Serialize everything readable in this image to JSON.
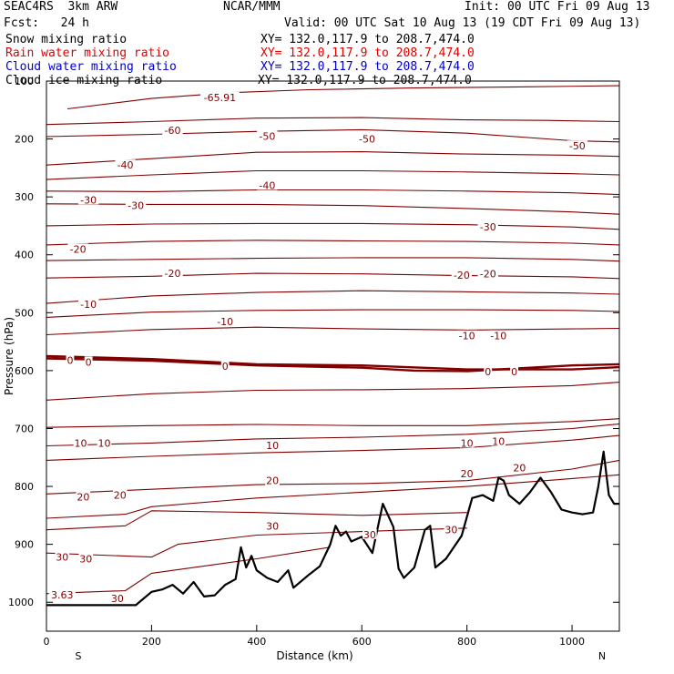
{
  "header": {
    "model": "SEAC4RS  3km ARW",
    "center": "NCAR/MMM",
    "init": "Init: 00 UTC Fri 09 Aug 13",
    "fcst": "Fcst:   24 h",
    "valid": "Valid: 00 UTC Sat 10 Aug 13 (19 CDT Fri 09 Aug 13)"
  },
  "legend": [
    {
      "name": "Snow mixing ratio",
      "xy": "XY= 132.0,117.9 to 208.7,474.0",
      "color": "#000000"
    },
    {
      "name": "Rain water mixing ratio",
      "xy": "XY= 132.0,117.9 to 208.7,474.0",
      "color": "#e00000"
    },
    {
      "name": "Cloud water mixing ratio",
      "xy": "XY= 132.0,117.9 to 208.7,474.0",
      "color": "#0000d0"
    },
    {
      "name": "Cloud ice mixing ratio",
      "xy": "XY= 132.0,117.9 to 208.7,474.0",
      "color": "#000000"
    }
  ],
  "chart_data": {
    "type": "line",
    "subtype": "vertical-cross-section-isotherms",
    "xlabel": "Distance (km)",
    "ylabel": "Pressure (hPa)",
    "xlim": [
      0,
      1090
    ],
    "ylim": [
      1050,
      100
    ],
    "x_ticks": [
      0,
      200,
      400,
      600,
      800,
      1000
    ],
    "y_ticks": [
      200,
      300,
      400,
      500,
      600,
      700,
      800,
      900,
      1000
    ],
    "y_top_label": "100",
    "end_labels": {
      "left": "S",
      "right": "N"
    },
    "isotherm_color": "#800000",
    "freezing_level_bold": true,
    "isotherms": [
      {
        "label": "-60",
        "points": [
          [
            40,
            148
          ],
          [
            200,
            130
          ],
          [
            350,
            120
          ],
          [
            500,
            115
          ],
          [
            700,
            112
          ],
          [
            900,
            110
          ],
          [
            1090,
            108
          ]
        ]
      },
      {
        "label": "-50",
        "points": [
          [
            0,
            175
          ],
          [
            200,
            170
          ],
          [
            400,
            164
          ],
          [
            600,
            163
          ],
          [
            800,
            167
          ],
          [
            950,
            168
          ],
          [
            1090,
            170
          ]
        ]
      },
      {
        "label": "-50",
        "points": [
          [
            0,
            196
          ],
          [
            200,
            192
          ],
          [
            400,
            187
          ],
          [
            600,
            184
          ],
          [
            800,
            190
          ],
          [
            1000,
            203
          ],
          [
            1090,
            205
          ]
        ]
      },
      {
        "label": "-40",
        "points": [
          [
            0,
            245
          ],
          [
            200,
            234
          ],
          [
            400,
            223
          ],
          [
            600,
            222
          ],
          [
            800,
            226
          ],
          [
            1000,
            228
          ],
          [
            1090,
            230
          ]
        ]
      },
      {
        "label": "-40",
        "points": [
          [
            0,
            270
          ],
          [
            200,
            262
          ],
          [
            400,
            255
          ],
          [
            600,
            255
          ],
          [
            800,
            257
          ],
          [
            1000,
            260
          ],
          [
            1090,
            262
          ]
        ]
      },
      {
        "label": "-30",
        "points": [
          [
            0,
            290
          ],
          [
            200,
            291
          ],
          [
            400,
            288
          ],
          [
            600,
            288
          ],
          [
            800,
            290
          ],
          [
            1000,
            293
          ],
          [
            1090,
            296
          ]
        ]
      },
      {
        "label": "-30",
        "points": [
          [
            0,
            312
          ],
          [
            200,
            313
          ],
          [
            400,
            313
          ],
          [
            600,
            315
          ],
          [
            800,
            320
          ],
          [
            1000,
            326
          ],
          [
            1090,
            330
          ]
        ]
      },
      {
        "label": "-30",
        "points": [
          [
            0,
            350
          ],
          [
            200,
            347
          ],
          [
            400,
            346
          ],
          [
            600,
            346
          ],
          [
            800,
            348
          ],
          [
            1000,
            352
          ],
          [
            1090,
            356
          ]
        ]
      },
      {
        "label": "-20",
        "points": [
          [
            0,
            383
          ],
          [
            200,
            377
          ],
          [
            400,
            375
          ],
          [
            600,
            376
          ],
          [
            800,
            377
          ],
          [
            1000,
            380
          ],
          [
            1090,
            383
          ]
        ]
      },
      {
        "label": "-20",
        "points": [
          [
            0,
            410
          ],
          [
            200,
            408
          ],
          [
            400,
            406
          ],
          [
            600,
            405
          ],
          [
            800,
            405
          ],
          [
            1000,
            408
          ],
          [
            1090,
            411
          ]
        ]
      },
      {
        "label": "-20",
        "points": [
          [
            0,
            440
          ],
          [
            200,
            437
          ],
          [
            400,
            432
          ],
          [
            600,
            433
          ],
          [
            800,
            436
          ],
          [
            1000,
            438
          ],
          [
            1090,
            441
          ]
        ]
      },
      {
        "label": "-10",
        "points": [
          [
            0,
            484
          ],
          [
            200,
            471
          ],
          [
            400,
            465
          ],
          [
            600,
            462
          ],
          [
            800,
            464
          ],
          [
            1000,
            466
          ],
          [
            1090,
            468
          ]
        ]
      },
      {
        "label": "-10",
        "points": [
          [
            0,
            508
          ],
          [
            200,
            499
          ],
          [
            400,
            496
          ],
          [
            600,
            495
          ],
          [
            800,
            495
          ],
          [
            1000,
            496
          ],
          [
            1090,
            498
          ]
        ]
      },
      {
        "label": "-10",
        "points": [
          [
            0,
            538
          ],
          [
            200,
            529
          ],
          [
            400,
            525
          ],
          [
            600,
            528
          ],
          [
            800,
            530
          ],
          [
            1000,
            528
          ],
          [
            1090,
            527
          ]
        ]
      },
      {
        "label": "0",
        "points": [
          [
            0,
            575
          ],
          [
            200,
            580
          ],
          [
            400,
            589
          ],
          [
            600,
            591
          ],
          [
            800,
            598
          ],
          [
            1000,
            598
          ],
          [
            1090,
            594
          ]
        ]
      },
      {
        "label": "0",
        "points": [
          [
            0,
            579
          ],
          [
            200,
            583
          ],
          [
            400,
            591
          ],
          [
            600,
            595
          ],
          [
            700,
            600
          ],
          [
            800,
            601
          ],
          [
            1000,
            591
          ],
          [
            1090,
            589
          ]
        ]
      },
      {
        "label": "10",
        "points": [
          [
            0,
            651
          ],
          [
            200,
            640
          ],
          [
            400,
            634
          ],
          [
            600,
            633
          ],
          [
            800,
            631
          ],
          [
            1000,
            626
          ],
          [
            1090,
            620
          ]
        ]
      },
      {
        "label": "10",
        "points": [
          [
            0,
            698
          ],
          [
            200,
            695
          ],
          [
            400,
            693
          ],
          [
            600,
            695
          ],
          [
            800,
            695
          ],
          [
            1000,
            688
          ],
          [
            1090,
            683
          ]
        ]
      },
      {
        "label": "10",
        "points": [
          [
            0,
            730
          ],
          [
            200,
            725
          ],
          [
            400,
            718
          ],
          [
            600,
            715
          ],
          [
            800,
            710
          ],
          [
            1000,
            700
          ],
          [
            1090,
            692
          ]
        ]
      },
      {
        "label": "20",
        "points": [
          [
            0,
            755
          ],
          [
            200,
            748
          ],
          [
            400,
            742
          ],
          [
            600,
            738
          ],
          [
            800,
            733
          ],
          [
            1000,
            720
          ],
          [
            1090,
            712
          ]
        ]
      },
      {
        "label": "20",
        "points": [
          [
            0,
            813
          ],
          [
            200,
            805
          ],
          [
            400,
            797
          ],
          [
            600,
            795
          ],
          [
            800,
            790
          ],
          [
            1000,
            770
          ],
          [
            1090,
            755
          ]
        ]
      },
      {
        "label": "20",
        "points": [
          [
            0,
            855
          ],
          [
            150,
            848
          ],
          [
            200,
            835
          ],
          [
            400,
            820
          ],
          [
            600,
            810
          ],
          [
            800,
            800
          ],
          [
            950,
            790
          ],
          [
            1090,
            780
          ]
        ]
      },
      {
        "label": "30",
        "points": [
          [
            0,
            875
          ],
          [
            150,
            868
          ],
          [
            200,
            842
          ],
          [
            400,
            845
          ],
          [
            600,
            850
          ],
          [
            800,
            845
          ]
        ]
      },
      {
        "label": "30",
        "points": [
          [
            0,
            915
          ],
          [
            200,
            922
          ],
          [
            250,
            900
          ],
          [
            400,
            884
          ],
          [
            600,
            878
          ],
          [
            700,
            875
          ],
          [
            800,
            872
          ]
        ]
      },
      {
        "label": "30",
        "points": [
          [
            0,
            985
          ],
          [
            150,
            980
          ],
          [
            200,
            950
          ],
          [
            400,
            925
          ],
          [
            540,
            905
          ]
        ]
      }
    ],
    "contour_labels": [
      {
        "text": "-65.91",
        "x": 330,
        "y": 128
      },
      {
        "text": "-60",
        "x": 240,
        "y": 185
      },
      {
        "text": "-50",
        "x": 420,
        "y": 195
      },
      {
        "text": "-50",
        "x": 610,
        "y": 200
      },
      {
        "text": "-50",
        "x": 1010,
        "y": 212
      },
      {
        "text": "-40",
        "x": 150,
        "y": 245
      },
      {
        "text": "-40",
        "x": 420,
        "y": 280
      },
      {
        "text": "-30",
        "x": 80,
        "y": 305
      },
      {
        "text": "-30",
        "x": 170,
        "y": 315
      },
      {
        "text": "-30",
        "x": 840,
        "y": 352
      },
      {
        "text": "-20",
        "x": 60,
        "y": 390
      },
      {
        "text": "-20",
        "x": 240,
        "y": 432
      },
      {
        "text": "-20",
        "x": 790,
        "y": 435
      },
      {
        "text": "-20",
        "x": 840,
        "y": 433
      },
      {
        "text": "-10",
        "x": 80,
        "y": 485
      },
      {
        "text": "-10",
        "x": 340,
        "y": 515
      },
      {
        "text": "-10",
        "x": 800,
        "y": 540
      },
      {
        "text": "-10",
        "x": 860,
        "y": 540
      },
      {
        "text": "0",
        "x": 45,
        "y": 582
      },
      {
        "text": "0",
        "x": 80,
        "y": 585
      },
      {
        "text": "0",
        "x": 340,
        "y": 592
      },
      {
        "text": "0",
        "x": 840,
        "y": 602
      },
      {
        "text": "0",
        "x": 890,
        "y": 602
      },
      {
        "text": "10",
        "x": 65,
        "y": 725
      },
      {
        "text": "10",
        "x": 110,
        "y": 725
      },
      {
        "text": "10",
        "x": 430,
        "y": 729
      },
      {
        "text": "10",
        "x": 800,
        "y": 725
      },
      {
        "text": "10",
        "x": 860,
        "y": 722
      },
      {
        "text": "20",
        "x": 70,
        "y": 818
      },
      {
        "text": "20",
        "x": 140,
        "y": 815
      },
      {
        "text": "20",
        "x": 430,
        "y": 790
      },
      {
        "text": "20",
        "x": 800,
        "y": 778
      },
      {
        "text": "20",
        "x": 900,
        "y": 768
      },
      {
        "text": "30",
        "x": 30,
        "y": 922
      },
      {
        "text": "30",
        "x": 75,
        "y": 925
      },
      {
        "text": "30",
        "x": 430,
        "y": 868
      },
      {
        "text": "30",
        "x": 615,
        "y": 883
      },
      {
        "text": "30",
        "x": 770,
        "y": 875
      },
      {
        "text": "30",
        "x": 135,
        "y": 993
      },
      {
        "text": "3.63",
        "x": 30,
        "y": 987
      }
    ],
    "terrain": [
      [
        0,
        1005
      ],
      [
        170,
        1005
      ],
      [
        200,
        982
      ],
      [
        220,
        978
      ],
      [
        240,
        970
      ],
      [
        260,
        985
      ],
      [
        280,
        965
      ],
      [
        300,
        990
      ],
      [
        320,
        988
      ],
      [
        340,
        970
      ],
      [
        360,
        960
      ],
      [
        370,
        905
      ],
      [
        380,
        940
      ],
      [
        390,
        920
      ],
      [
        400,
        945
      ],
      [
        420,
        958
      ],
      [
        440,
        965
      ],
      [
        460,
        945
      ],
      [
        470,
        975
      ],
      [
        500,
        952
      ],
      [
        520,
        938
      ],
      [
        540,
        900
      ],
      [
        550,
        868
      ],
      [
        560,
        885
      ],
      [
        570,
        878
      ],
      [
        580,
        895
      ],
      [
        600,
        887
      ],
      [
        620,
        915
      ],
      [
        640,
        830
      ],
      [
        660,
        870
      ],
      [
        670,
        942
      ],
      [
        680,
        958
      ],
      [
        700,
        940
      ],
      [
        720,
        875
      ],
      [
        730,
        868
      ],
      [
        740,
        940
      ],
      [
        760,
        925
      ],
      [
        790,
        885
      ],
      [
        810,
        820
      ],
      [
        830,
        815
      ],
      [
        850,
        825
      ],
      [
        860,
        785
      ],
      [
        870,
        790
      ],
      [
        880,
        815
      ],
      [
        900,
        830
      ],
      [
        920,
        810
      ],
      [
        940,
        785
      ],
      [
        960,
        810
      ],
      [
        980,
        840
      ],
      [
        1000,
        845
      ],
      [
        1020,
        848
      ],
      [
        1040,
        845
      ],
      [
        1050,
        800
      ],
      [
        1060,
        740
      ],
      [
        1070,
        815
      ],
      [
        1080,
        830
      ],
      [
        1090,
        830
      ]
    ]
  }
}
